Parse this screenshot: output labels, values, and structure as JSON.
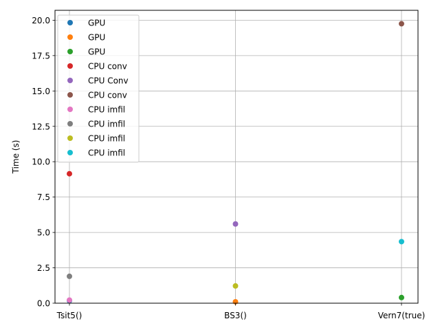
{
  "chart_data": {
    "type": "scatter",
    "title": "",
    "xlabel": "",
    "ylabel": "Time (s)",
    "categories": [
      "Tsit5()",
      "BS3()",
      "Vern7(true)"
    ],
    "ylim": [
      0,
      20.7
    ],
    "yticks": [
      "0.0",
      "2.5",
      "5.0",
      "7.5",
      "10.0",
      "12.5",
      "15.0",
      "17.5",
      "20.0"
    ],
    "grid": true,
    "legend_position": "top-left",
    "series": [
      {
        "name": "GPU",
        "color": "#1f77b4",
        "points": [
          {
            "x": "Tsit5()",
            "y": 0.18
          }
        ]
      },
      {
        "name": "GPU",
        "color": "#ff7f0e",
        "points": [
          {
            "x": "BS3()",
            "y": 0.1
          }
        ]
      },
      {
        "name": "GPU",
        "color": "#2ca02c",
        "points": [
          {
            "x": "Vern7(true)",
            "y": 0.4
          }
        ]
      },
      {
        "name": "CPU conv",
        "color": "#d62728",
        "points": [
          {
            "x": "Tsit5()",
            "y": 9.15
          }
        ]
      },
      {
        "name": "CPU Conv",
        "color": "#9467bd",
        "points": [
          {
            "x": "BS3()",
            "y": 5.6
          }
        ]
      },
      {
        "name": "CPU conv",
        "color": "#8c564b",
        "points": [
          {
            "x": "Vern7(true)",
            "y": 19.75
          }
        ]
      },
      {
        "name": "CPU imfil",
        "color": "#e377c2",
        "points": [
          {
            "x": "Tsit5()",
            "y": 0.22
          }
        ]
      },
      {
        "name": "CPU imfil",
        "color": "#7f7f7f",
        "points": [
          {
            "x": "Tsit5()",
            "y": 1.9
          }
        ]
      },
      {
        "name": "CPU imfil",
        "color": "#bcbd22",
        "points": [
          {
            "x": "BS3()",
            "y": 1.22
          }
        ]
      },
      {
        "name": "CPU imfil",
        "color": "#17becf",
        "points": [
          {
            "x": "Vern7(true)",
            "y": 4.35
          }
        ]
      }
    ]
  }
}
